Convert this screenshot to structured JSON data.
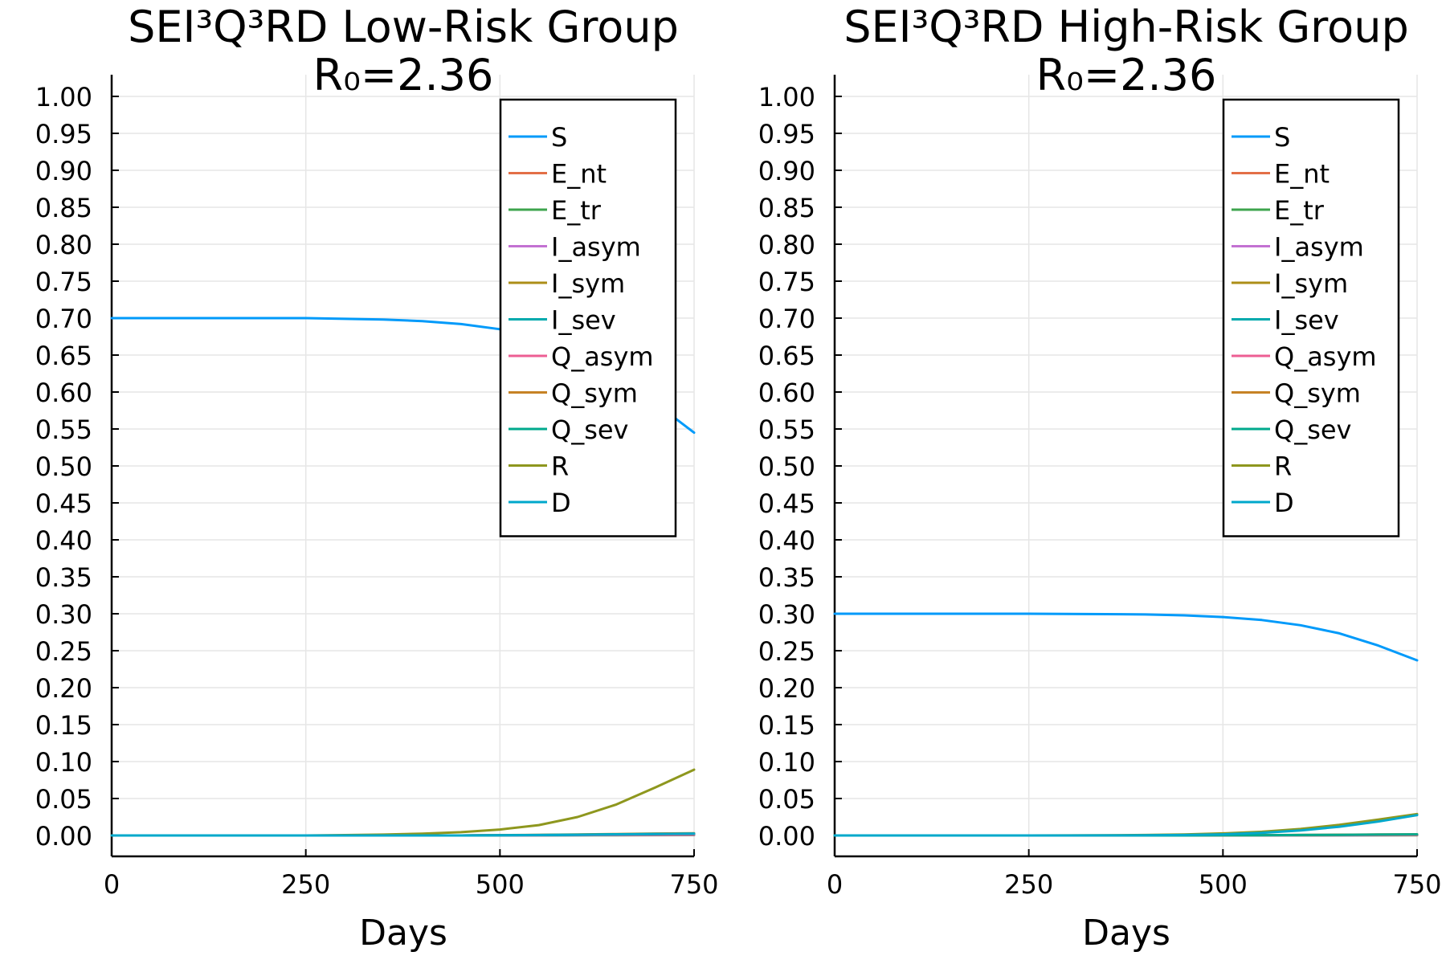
{
  "chart_data": [
    {
      "type": "line",
      "title": "SEI³Q³RD Low-Risk Group",
      "subtitle": "R₀=2.36",
      "xlabel": "Days",
      "ylabel": "",
      "xlim": [
        0,
        750
      ],
      "ylim": [
        0,
        1
      ],
      "xticks": [
        0,
        250,
        500,
        750
      ],
      "xtick_labels": [
        "0",
        "250",
        "500",
        "750"
      ],
      "yticks": [
        0,
        0.05,
        0.1,
        0.15,
        0.2,
        0.25,
        0.3,
        0.35,
        0.4,
        0.45,
        0.5,
        0.55,
        0.6,
        0.65,
        0.7,
        0.75,
        0.8,
        0.85,
        0.9,
        0.95,
        1.0
      ],
      "ytick_labels": [
        "0.00",
        "0.05",
        "0.10",
        "0.15",
        "0.20",
        "0.25",
        "0.30",
        "0.35",
        "0.40",
        "0.45",
        "0.50",
        "0.55",
        "0.60",
        "0.65",
        "0.70",
        "0.75",
        "0.80",
        "0.85",
        "0.90",
        "0.95",
        "1.00"
      ],
      "grid": true,
      "legend_position": "top-right",
      "x": [
        0,
        50,
        100,
        150,
        200,
        250,
        300,
        350,
        400,
        450,
        500,
        550,
        600,
        650,
        700,
        750
      ],
      "series": [
        {
          "name": "S",
          "color": "#009AFA",
          "values": [
            0.7,
            0.7,
            0.7,
            0.7,
            0.7,
            0.7,
            0.699,
            0.698,
            0.696,
            0.692,
            0.685,
            0.672,
            0.65,
            0.62,
            0.585,
            0.545
          ]
        },
        {
          "name": "E_nt",
          "color": "#E36F47",
          "values": [
            0,
            0,
            0,
            0,
            0,
            0,
            0,
            0,
            0,
            0,
            0.0003,
            0.0005,
            0.0009,
            0.0013,
            0.0017,
            0.002
          ]
        },
        {
          "name": "E_tr",
          "color": "#3EA44E",
          "values": [
            0,
            0,
            0,
            0,
            0,
            0,
            0,
            0,
            0,
            0,
            0,
            0.0001,
            0.0002,
            0.0003,
            0.0004,
            0.0005
          ]
        },
        {
          "name": "I_asym",
          "color": "#C371D2",
          "values": [
            0,
            0,
            0,
            0,
            0,
            0,
            0,
            0,
            0,
            0,
            0.0002,
            0.0004,
            0.0007,
            0.001,
            0.0013,
            0.0016
          ]
        },
        {
          "name": "I_sym",
          "color": "#AC8E18",
          "values": [
            0,
            0,
            0,
            0,
            0,
            0,
            0,
            0,
            0,
            0,
            0.0002,
            0.0004,
            0.0007,
            0.001,
            0.0013,
            0.0016
          ]
        },
        {
          "name": "I_sev",
          "color": "#00A9AD",
          "values": [
            0,
            0,
            0,
            0,
            0,
            0,
            0,
            0,
            0,
            0,
            0.0001,
            0.0002,
            0.0004,
            0.0006,
            0.0008,
            0.001
          ]
        },
        {
          "name": "Q_asym",
          "color": "#ED5E93",
          "values": [
            0,
            0,
            0,
            0,
            0,
            0,
            0,
            0,
            0,
            0,
            0.0001,
            0.0002,
            0.0004,
            0.0006,
            0.0008,
            0.001
          ]
        },
        {
          "name": "Q_sym",
          "color": "#C68225",
          "values": [
            0,
            0,
            0,
            0,
            0,
            0,
            0,
            0,
            0,
            0,
            0.0004,
            0.0008,
            0.0014,
            0.002,
            0.0026,
            0.003
          ]
        },
        {
          "name": "Q_sev",
          "color": "#00A98D",
          "values": [
            0,
            0,
            0,
            0,
            0,
            0,
            0,
            0,
            0,
            0,
            0.0003,
            0.0006,
            0.0011,
            0.0016,
            0.0021,
            0.0025
          ]
        },
        {
          "name": "R",
          "color": "#8E971E",
          "values": [
            0,
            0,
            0,
            0,
            0,
            0,
            0.0005,
            0.0012,
            0.0025,
            0.0045,
            0.008,
            0.014,
            0.025,
            0.042,
            0.065,
            0.089
          ]
        },
        {
          "name": "D",
          "color": "#00A8CB",
          "values": [
            0,
            0,
            0,
            0,
            0,
            0,
            0,
            0,
            0,
            0,
            0.0002,
            0.0005,
            0.0009,
            0.0014,
            0.0019,
            0.0024
          ]
        }
      ]
    },
    {
      "type": "line",
      "title": "SEI³Q³RD High-Risk Group",
      "subtitle": "R₀=2.36",
      "xlabel": "Days",
      "ylabel": "",
      "xlim": [
        0,
        750
      ],
      "ylim": [
        0,
        1
      ],
      "xticks": [
        0,
        250,
        500,
        750
      ],
      "xtick_labels": [
        "0",
        "250",
        "500",
        "750"
      ],
      "yticks": [
        0,
        0.05,
        0.1,
        0.15,
        0.2,
        0.25,
        0.3,
        0.35,
        0.4,
        0.45,
        0.5,
        0.55,
        0.6,
        0.65,
        0.7,
        0.75,
        0.8,
        0.85,
        0.9,
        0.95,
        1.0
      ],
      "ytick_labels": [
        "0.00",
        "0.05",
        "0.10",
        "0.15",
        "0.20",
        "0.25",
        "0.30",
        "0.35",
        "0.40",
        "0.45",
        "0.50",
        "0.55",
        "0.60",
        "0.65",
        "0.70",
        "0.75",
        "0.80",
        "0.85",
        "0.90",
        "0.95",
        "1.00"
      ],
      "grid": true,
      "legend_position": "top-right",
      "x": [
        0,
        50,
        100,
        150,
        200,
        250,
        300,
        350,
        400,
        450,
        500,
        550,
        600,
        650,
        700,
        750
      ],
      "series": [
        {
          "name": "S",
          "color": "#009AFA",
          "values": [
            0.3,
            0.3,
            0.3,
            0.3,
            0.3,
            0.3,
            0.2998,
            0.2995,
            0.299,
            0.2978,
            0.2955,
            0.2915,
            0.2845,
            0.2735,
            0.257,
            0.237
          ]
        },
        {
          "name": "E_nt",
          "color": "#E36F47",
          "values": [
            0,
            0,
            0,
            0,
            0,
            0,
            0,
            0,
            0,
            0,
            0.0002,
            0.0004,
            0.0006,
            0.0008,
            0.001,
            0.0012
          ]
        },
        {
          "name": "E_tr",
          "color": "#3EA44E",
          "values": [
            0,
            0,
            0,
            0,
            0,
            0,
            0,
            0,
            0,
            0,
            0,
            0.0001,
            0.0001,
            0.0002,
            0.0002,
            0.0003
          ]
        },
        {
          "name": "I_asym",
          "color": "#C371D2",
          "values": [
            0,
            0,
            0,
            0,
            0,
            0,
            0,
            0,
            0,
            0,
            0.0001,
            0.0002,
            0.0004,
            0.0006,
            0.0008,
            0.001
          ]
        },
        {
          "name": "I_sym",
          "color": "#AC8E18",
          "values": [
            0,
            0,
            0,
            0,
            0,
            0,
            0,
            0,
            0,
            0,
            0.0001,
            0.0002,
            0.0004,
            0.0006,
            0.0008,
            0.001
          ]
        },
        {
          "name": "I_sev",
          "color": "#00A9AD",
          "values": [
            0,
            0,
            0,
            0,
            0,
            0,
            0,
            0,
            0,
            0,
            0.0001,
            0.0001,
            0.0002,
            0.0003,
            0.0004,
            0.0005
          ]
        },
        {
          "name": "Q_asym",
          "color": "#ED5E93",
          "values": [
            0,
            0,
            0,
            0,
            0,
            0,
            0,
            0,
            0,
            0,
            0.0001,
            0.0001,
            0.0002,
            0.0003,
            0.0004,
            0.0005
          ]
        },
        {
          "name": "Q_sym",
          "color": "#C68225",
          "values": [
            0,
            0,
            0,
            0,
            0,
            0,
            0,
            0,
            0,
            0,
            0.0002,
            0.0004,
            0.0007,
            0.001,
            0.0013,
            0.0015
          ]
        },
        {
          "name": "Q_sev",
          "color": "#00A98D",
          "values": [
            0,
            0,
            0,
            0,
            0,
            0,
            0,
            0,
            0,
            0,
            0.0002,
            0.0003,
            0.0006,
            0.0009,
            0.0012,
            0.0015
          ]
        },
        {
          "name": "R",
          "color": "#8E971E",
          "values": [
            0,
            0,
            0,
            0,
            0,
            0,
            0.0001,
            0.0003,
            0.0007,
            0.0014,
            0.0028,
            0.005,
            0.0088,
            0.0145,
            0.0215,
            0.029
          ]
        },
        {
          "name": "D",
          "color": "#00A8CB",
          "values": [
            0,
            0,
            0,
            0,
            0,
            0,
            0,
            0.0001,
            0.0003,
            0.0007,
            0.0015,
            0.0035,
            0.0068,
            0.0118,
            0.0188,
            0.0275
          ]
        }
      ]
    }
  ]
}
